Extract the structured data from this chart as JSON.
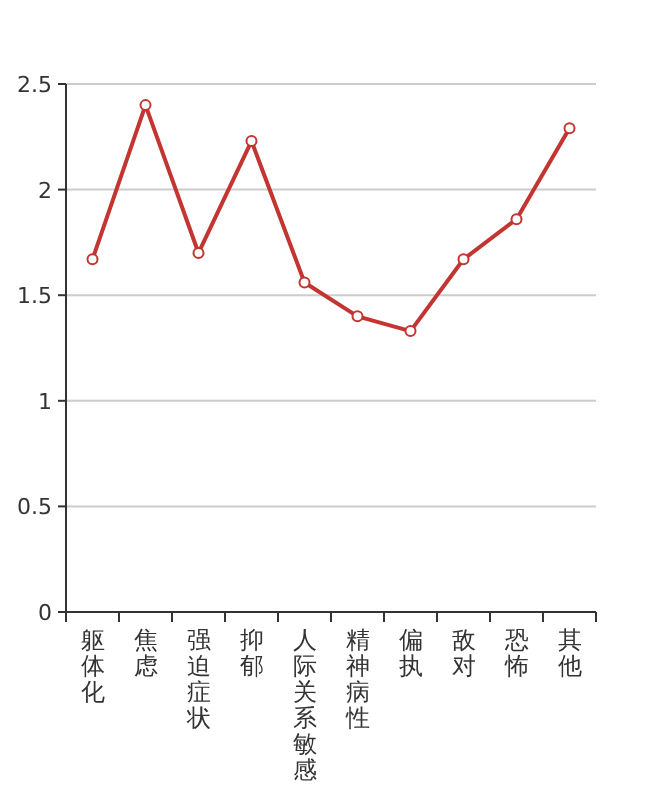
{
  "chart_data": {
    "type": "line",
    "categories": [
      "躯体化",
      "焦虑",
      "强迫症状",
      "抑郁",
      "人际关系敏感",
      "精神病性",
      "偏执",
      "敌对",
      "恐怖",
      "其他"
    ],
    "series": [
      {
        "color": "#c23531",
        "values": [
          1.67,
          2.4,
          1.7,
          2.23,
          1.56,
          1.4,
          1.33,
          1.67,
          1.86,
          2.29
        ]
      }
    ],
    "ylim": [
      0,
      2.5
    ],
    "yticks": [
      0,
      0.5,
      1,
      1.5,
      2,
      2.5
    ],
    "grid": "y",
    "marker": "circle",
    "line_style": "solid"
  }
}
